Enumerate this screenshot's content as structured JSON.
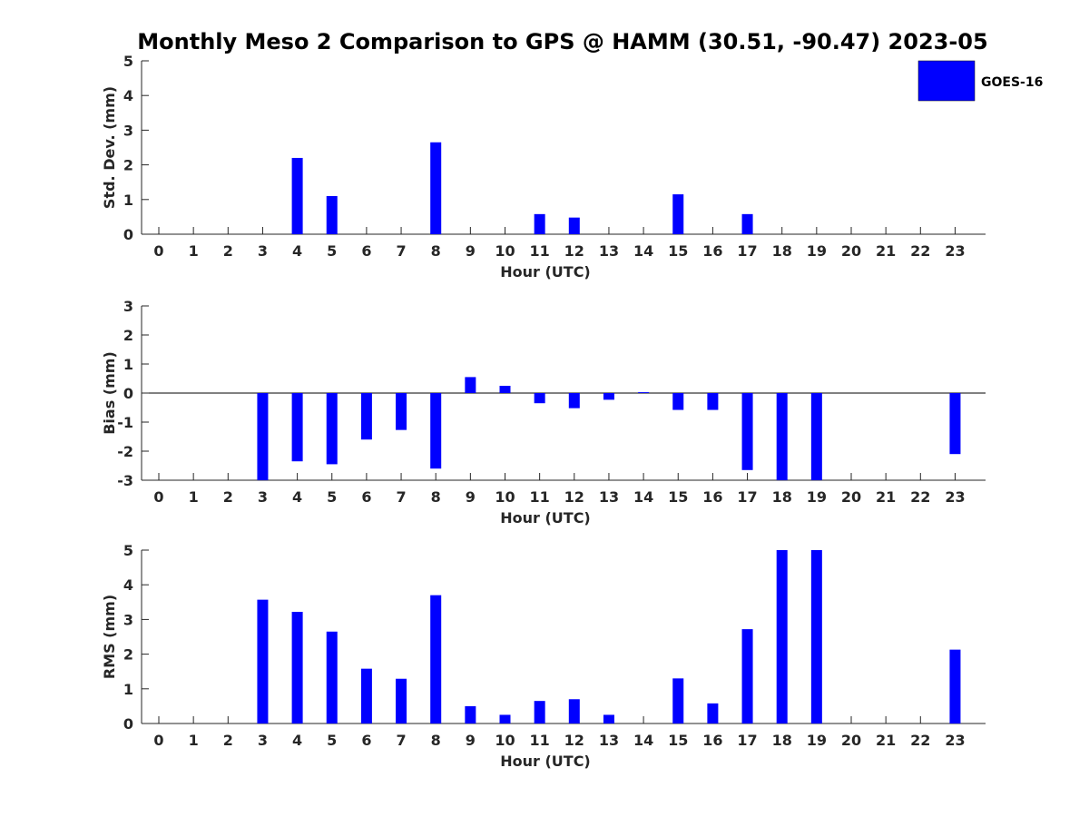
{
  "title": "Monthly Meso 2 Comparison to GPS @ HAMM (30.51, -90.47) 2023-05",
  "legend": {
    "label": "GOES-16",
    "color": "#0000ff",
    "position": "top-right"
  },
  "chart_data": [
    {
      "type": "bar",
      "xlabel": "Hour (UTC)",
      "ylabel": "Std. Dev. (mm)",
      "ylim": [
        0,
        5
      ],
      "yticks": [
        "0",
        "1",
        "2",
        "3",
        "4",
        "5"
      ],
      "categories": [
        "0",
        "1",
        "2",
        "3",
        "4",
        "5",
        "6",
        "7",
        "8",
        "9",
        "10",
        "11",
        "12",
        "13",
        "14",
        "15",
        "16",
        "17",
        "18",
        "19",
        "20",
        "21",
        "22",
        "23"
      ],
      "series": [
        {
          "name": "GOES-16",
          "values": [
            0,
            0,
            0,
            0,
            2.2,
            1.1,
            0,
            0,
            2.65,
            0,
            0,
            0.58,
            0.48,
            0,
            0,
            1.15,
            0,
            0.58,
            0,
            0,
            0,
            0,
            0,
            0
          ]
        }
      ],
      "zero_line": false
    },
    {
      "type": "bar",
      "xlabel": "Hour (UTC)",
      "ylabel": "Bias (mm)",
      "ylim": [
        -3,
        3
      ],
      "yticks": [
        "-3",
        "-2",
        "-1",
        "0",
        "1",
        "2",
        "3"
      ],
      "categories": [
        "0",
        "1",
        "2",
        "3",
        "4",
        "5",
        "6",
        "7",
        "8",
        "9",
        "10",
        "11",
        "12",
        "13",
        "14",
        "15",
        "16",
        "17",
        "18",
        "19",
        "20",
        "21",
        "22",
        "23"
      ],
      "series": [
        {
          "name": "GOES-16",
          "values": [
            0,
            0,
            0,
            -3.0,
            -2.35,
            -2.45,
            -1.6,
            -1.27,
            -2.6,
            0.55,
            0.25,
            -0.35,
            -0.52,
            -0.23,
            0.03,
            -0.58,
            -0.58,
            -2.65,
            -3.0,
            -3.0,
            0,
            0,
            0,
            -2.1
          ]
        }
      ],
      "zero_line": true
    },
    {
      "type": "bar",
      "xlabel": "Hour (UTC)",
      "ylabel": "RMS (mm)",
      "ylim": [
        0,
        5
      ],
      "yticks": [
        "0",
        "1",
        "2",
        "3",
        "4",
        "5"
      ],
      "categories": [
        "0",
        "1",
        "2",
        "3",
        "4",
        "5",
        "6",
        "7",
        "8",
        "9",
        "10",
        "11",
        "12",
        "13",
        "14",
        "15",
        "16",
        "17",
        "18",
        "19",
        "20",
        "21",
        "22",
        "23"
      ],
      "series": [
        {
          "name": "GOES-16",
          "values": [
            0,
            0,
            0,
            3.57,
            3.22,
            2.65,
            1.58,
            1.29,
            3.7,
            0.5,
            0.25,
            0.65,
            0.7,
            0.25,
            0,
            1.3,
            0.58,
            2.72,
            5.0,
            5.0,
            0,
            0,
            0,
            2.13
          ]
        }
      ],
      "zero_line": false
    }
  ]
}
